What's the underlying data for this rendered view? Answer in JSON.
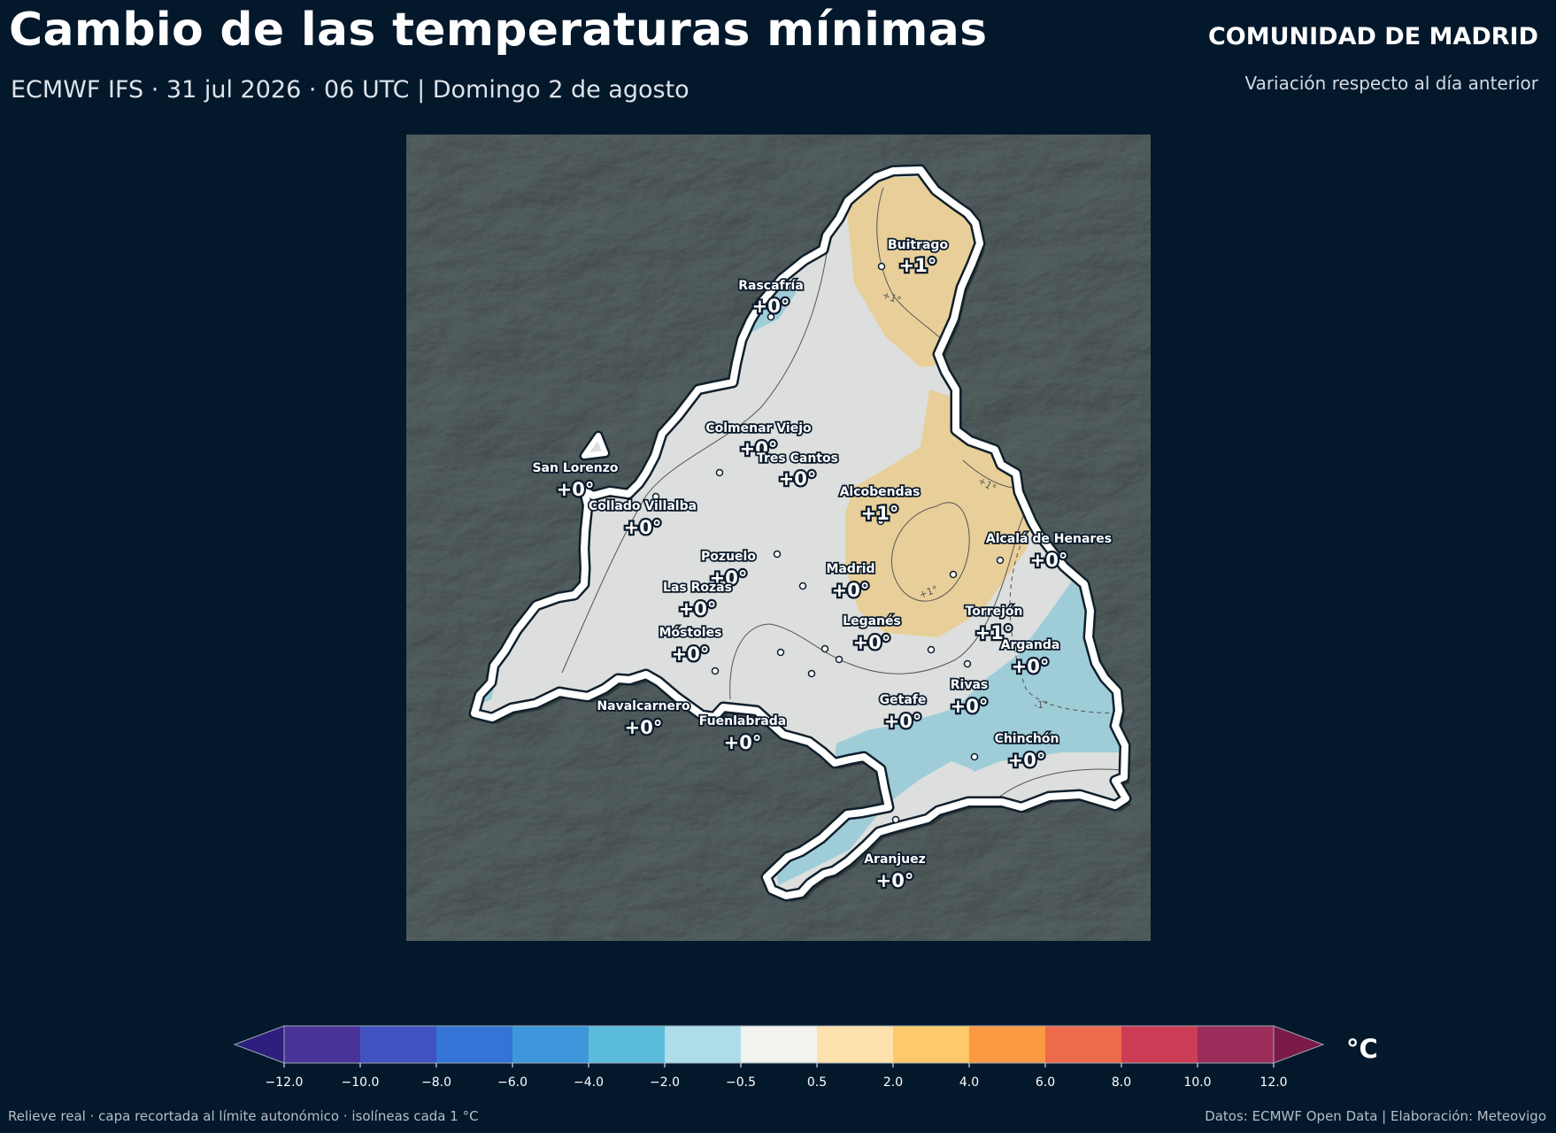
{
  "header": {
    "title": "Cambio de las temperaturas mínimas",
    "subtitle": "ECMWF IFS · 31 jul 2026 · 06 UTC  |  Domingo 2 de agosto",
    "region": "COMUNIDAD DE MADRID",
    "region_subtitle": "Variación respecto al día anterior"
  },
  "cities": [
    {
      "name": "Buitrago",
      "value": "+1°"
    },
    {
      "name": "Rascafría",
      "value": "+0°"
    },
    {
      "name": "Colmenar Viejo",
      "value": "+0°"
    },
    {
      "name": "Tres Cantos",
      "value": "+0°"
    },
    {
      "name": "San Lorenzo",
      "value": "+0°"
    },
    {
      "name": "Collado Villalba",
      "value": "+0°"
    },
    {
      "name": "Alcobendas",
      "value": "+1°"
    },
    {
      "name": "Alcalá de Henares",
      "value": "+0°"
    },
    {
      "name": "Pozuelo",
      "value": "+0°"
    },
    {
      "name": "Madrid",
      "value": "+0°"
    },
    {
      "name": "Las Rozas",
      "value": "+0°"
    },
    {
      "name": "Torrejón",
      "value": "+1°"
    },
    {
      "name": "Móstoles",
      "value": "+0°"
    },
    {
      "name": "Leganés",
      "value": "+0°"
    },
    {
      "name": "Arganda",
      "value": "+0°"
    },
    {
      "name": "Rivas",
      "value": "+0°"
    },
    {
      "name": "Navalcarnero",
      "value": "+0°"
    },
    {
      "name": "Getafe",
      "value": "+0°"
    },
    {
      "name": "Fuenlabrada",
      "value": "+0°"
    },
    {
      "name": "Chinchón",
      "value": "+0°"
    },
    {
      "name": "Aranjuez",
      "value": "+0°"
    }
  ],
  "isolines": [
    "+1°",
    "+1°",
    "+1°",
    "-1°"
  ],
  "colorbar": {
    "unit": "°C",
    "ticks": [
      "−12.0",
      "−10.0",
      "−8.0",
      "−6.0",
      "−4.0",
      "−2.0",
      "−0.5",
      "0.5",
      "2.0",
      "4.0",
      "6.0",
      "8.0",
      "10.0",
      "12.0"
    ],
    "colors": [
      "#4a3398",
      "#4152c0",
      "#3374d6",
      "#3f97db",
      "#5bbcdc",
      "#aedde9",
      "#f2f2ee",
      "#fde2ad",
      "#fdc96a",
      "#fb9a43",
      "#ed6a4a",
      "#cc3d55",
      "#9c2d5b"
    ],
    "under_color": "#2e1f7e",
    "over_color": "#7b1a48"
  },
  "footer": {
    "left": "Relieve real · capa recortada al límite autonómico · isolíneas cada 1 °C",
    "right": "Datos: ECMWF Open Data | Elaboración: Meteovigo"
  }
}
